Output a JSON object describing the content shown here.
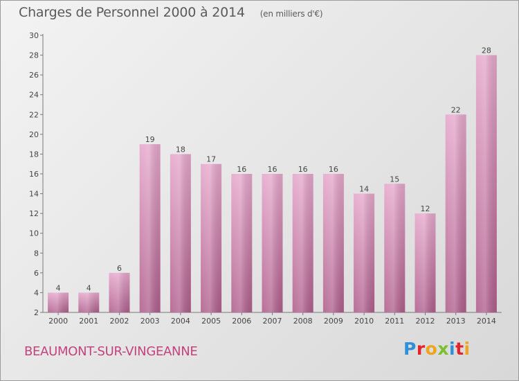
{
  "header": {
    "title": "Charges de Personnel 2000 à 2014",
    "subtitle": "(en milliers d'€)"
  },
  "footer": {
    "place_name": "BEAUMONT-SUR-VINGEANNE",
    "logo_text": "Proxiti"
  },
  "colors": {
    "bar_top": "#e6a8cc",
    "bar_bottom": "#b05f8c",
    "place_name": "#c2437e",
    "text": "#444444"
  },
  "chart_data": {
    "type": "bar",
    "title": "Charges de Personnel 2000 à 2014",
    "subtitle": "(en milliers d'€)",
    "categories": [
      "2000",
      "2001",
      "2002",
      "2003",
      "2004",
      "2005",
      "2006",
      "2007",
      "2008",
      "2009",
      "2010",
      "2011",
      "2012",
      "2013",
      "2014"
    ],
    "values": [
      4,
      4,
      6,
      19,
      18,
      17,
      16,
      16,
      16,
      16,
      14,
      15,
      12,
      22,
      28
    ],
    "ylim": [
      2,
      30
    ],
    "yticks": [
      2,
      4,
      6,
      8,
      10,
      12,
      14,
      16,
      18,
      20,
      22,
      24,
      26,
      28,
      30
    ],
    "grid": false,
    "data_labels": true
  }
}
